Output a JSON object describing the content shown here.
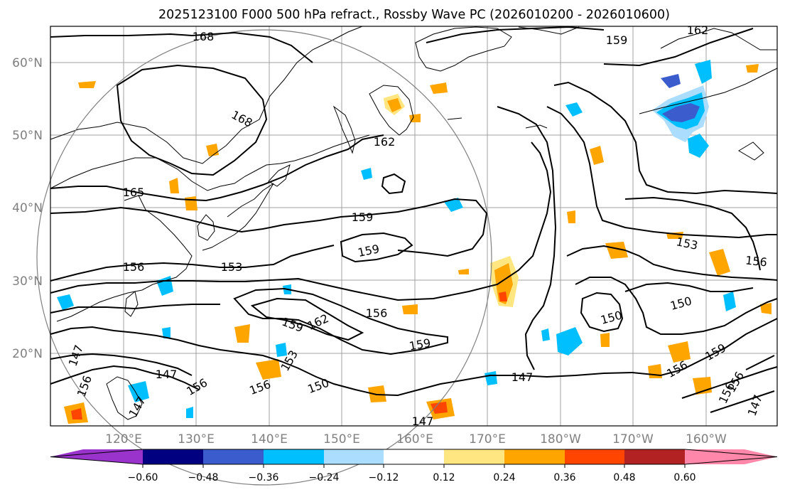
{
  "title": "2025123100 F000 500 hPa refract., Rossby Wave PC (2026010200 - 2026010600)",
  "map": {
    "lon_range": [
      110,
      210
    ],
    "lat_range": [
      10,
      65
    ],
    "lon_ticks": [
      "120°E",
      "130°E",
      "140°E",
      "150°E",
      "160°E",
      "170°E",
      "180°W",
      "170°W",
      "160°W"
    ],
    "lat_ticks": [
      "20°N",
      "30°N",
      "40°N",
      "50°N",
      "60°N"
    ],
    "gridlines": true,
    "contour_labels": [
      "168",
      "162",
      "162",
      "159",
      "168",
      "165",
      "159",
      "159",
      "153",
      "156",
      "159",
      "162",
      "156",
      "159",
      "150",
      "150",
      "153",
      "156",
      "147",
      "156",
      "150",
      "147",
      "156",
      "147",
      "156",
      "147",
      "159",
      "156",
      "156",
      "147",
      "147",
      "153",
      "156"
    ]
  },
  "colorbar": {
    "ticks": [
      "−0.60",
      "−0.48",
      "−0.36",
      "−0.24",
      "−0.12",
      "0.12",
      "0.24",
      "0.36",
      "0.48",
      "0.60"
    ],
    "colors": [
      "#9933cc",
      "#000080",
      "#3a5ccc",
      "#00bfff",
      "#aaddff",
      "#ffffff",
      "#ffe680",
      "#ffa500",
      "#ff4500",
      "#b22222",
      "#ff88aa"
    ],
    "extend": "both"
  }
}
